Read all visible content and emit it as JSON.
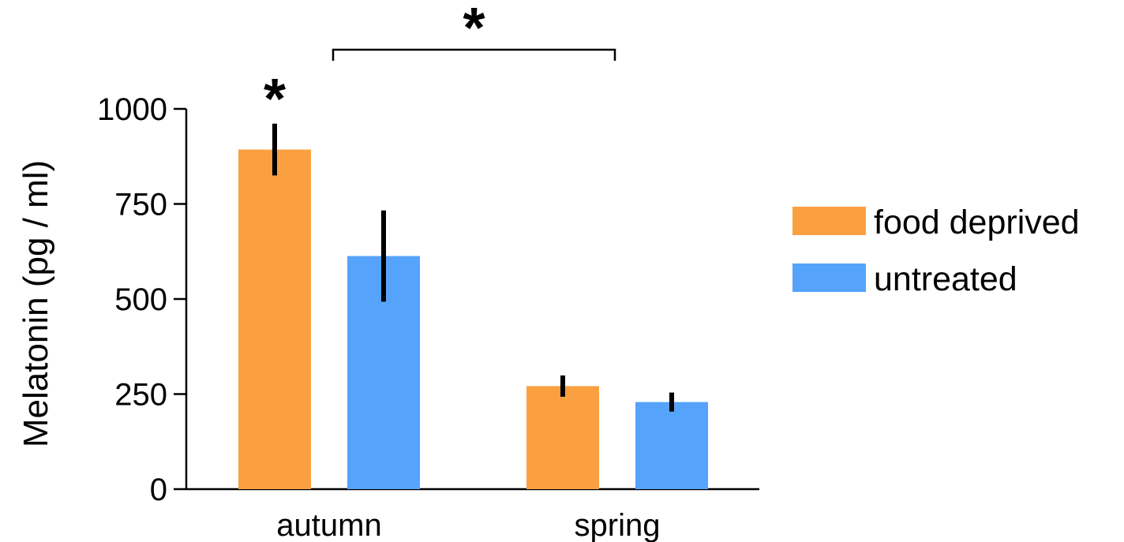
{
  "chart_data": {
    "type": "bar",
    "title": "",
    "xlabel": "",
    "ylabel": "Melatonin (pg / ml)",
    "ylim": [
      0,
      1000
    ],
    "yticks": [
      0,
      250,
      500,
      750,
      1000
    ],
    "ytick_labels": [
      "0",
      "250",
      "500",
      "750",
      "1000"
    ],
    "categories": [
      "autumn",
      "spring"
    ],
    "grid": false,
    "legend_position": "right",
    "series": [
      {
        "name": "food deprived",
        "color": "#FBA040",
        "values": [
          893,
          271
        ],
        "error": [
          68,
          28
        ]
      },
      {
        "name": "untreated",
        "color": "#55A3FB",
        "values": [
          613,
          229
        ],
        "error": [
          120,
          25
        ]
      }
    ],
    "annotations": [
      {
        "type": "star",
        "text": "*",
        "target": "autumn / food deprived vs untreated"
      },
      {
        "type": "bracket-star",
        "text": "*",
        "target": "food deprived autumn vs spring"
      }
    ]
  }
}
